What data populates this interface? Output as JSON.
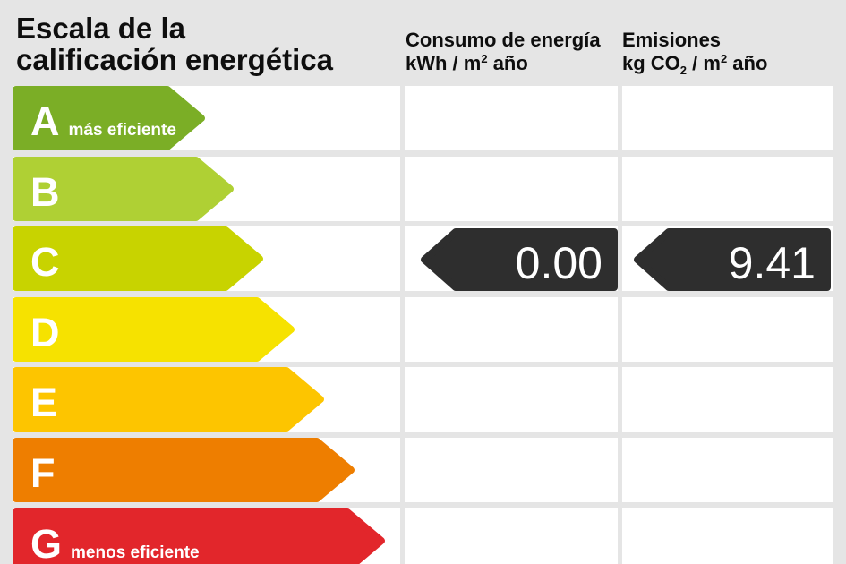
{
  "page": {
    "background": "#e5e5e5",
    "title_line1": "Escala de la",
    "title_line2": "calificación energética"
  },
  "columns": {
    "consumo": {
      "title": "Consumo de energía",
      "unit_pre": "kWh / m",
      "unit_sup": "2",
      "unit_post": " año"
    },
    "emisiones": {
      "title": "Emisiones",
      "unit_pre": "kg CO",
      "unit_sub": "2",
      "unit_mid": " / m",
      "unit_sup": "2",
      "unit_post": " año"
    }
  },
  "scale": {
    "rows": [
      {
        "grade": "A",
        "note": "más eficiente",
        "color": "#7bae26"
      },
      {
        "grade": "B",
        "note": "",
        "color": "#afd034"
      },
      {
        "grade": "C",
        "note": "",
        "color": "#c8d300"
      },
      {
        "grade": "D",
        "note": "",
        "color": "#f6e200"
      },
      {
        "grade": "E",
        "note": "",
        "color": "#fdc500"
      },
      {
        "grade": "F",
        "note": "",
        "color": "#ee7e00"
      },
      {
        "grade": "G",
        "note": "menos eficiente",
        "color": "#e2262b"
      }
    ]
  },
  "values": {
    "rating_grade": "C",
    "consumo": "0.00",
    "emisiones": "9.41",
    "arrow_color": "#2e2e2e"
  },
  "chart_data": {
    "type": "bar",
    "title": "Escala de la calificación energética",
    "categories": [
      "A",
      "B",
      "C",
      "D",
      "E",
      "F",
      "G"
    ],
    "category_colors": [
      "#7bae26",
      "#afd034",
      "#c8d300",
      "#f6e200",
      "#fdc500",
      "#ee7e00",
      "#e2262b"
    ],
    "annotations": {
      "A": "más eficiente",
      "G": "menos eficiente"
    },
    "rating": "C",
    "series": [
      {
        "name": "Consumo de energía kWh/m2 año",
        "grade": "C",
        "value": 0.0
      },
      {
        "name": "Emisiones kg CO2/m2 año",
        "grade": "C",
        "value": 9.41
      }
    ]
  }
}
